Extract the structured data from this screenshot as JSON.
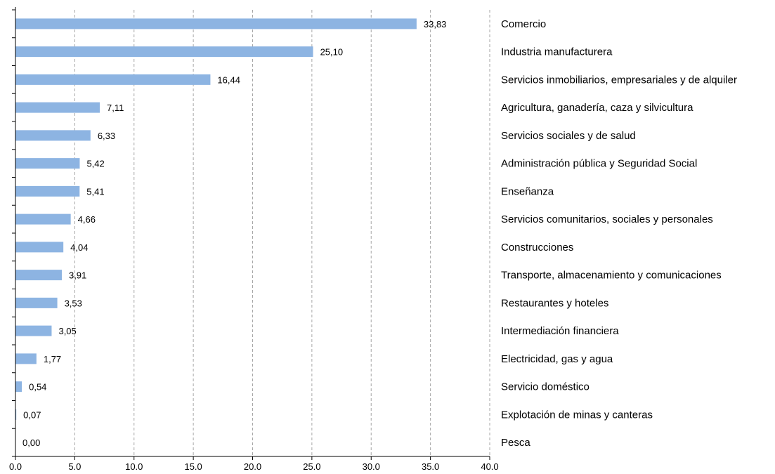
{
  "chart_data": {
    "type": "bar",
    "orientation": "horizontal",
    "categories": [
      "Comercio",
      "Industria manufacturera",
      "Servicios inmobiliarios, empresariales y de alquiler",
      "Agricultura, ganadería, caza y silvicultura",
      "Servicios sociales y de salud",
      "Administración pública y Seguridad Social",
      "Enseñanza",
      "Servicios comunitarios, sociales y personales",
      "Construcciones",
      "Transporte, almacenamiento y comunicaciones",
      "Restaurantes y hoteles",
      "Intermediación financiera",
      "Electricidad, gas y agua",
      "Servicio doméstico",
      "Explotación de minas y canteras",
      "Pesca"
    ],
    "values": [
      33.83,
      25.1,
      16.44,
      7.11,
      6.33,
      5.42,
      5.41,
      4.66,
      4.04,
      3.91,
      3.53,
      3.05,
      1.77,
      0.54,
      0.07,
      0.0
    ],
    "value_labels": [
      "33,83",
      "25,10",
      "16,44",
      "7,11",
      "6,33",
      "5,42",
      "5,41",
      "4,66",
      "4,04",
      "3,91",
      "3,53",
      "3,05",
      "1,77",
      "0,54",
      "0,07",
      "0,00"
    ],
    "xlim": [
      0,
      40
    ],
    "xticks": [
      0,
      5,
      10,
      15,
      20,
      25,
      30,
      35,
      40
    ],
    "xtick_labels": [
      "0.0",
      "5.0",
      "10.0",
      "15.0",
      "20.0",
      "25.0",
      "30.0",
      "35.0",
      "40.0"
    ],
    "grid": "vertical dashed",
    "bar_color": "#8db4e2",
    "title": "",
    "xlabel": "",
    "ylabel": ""
  }
}
